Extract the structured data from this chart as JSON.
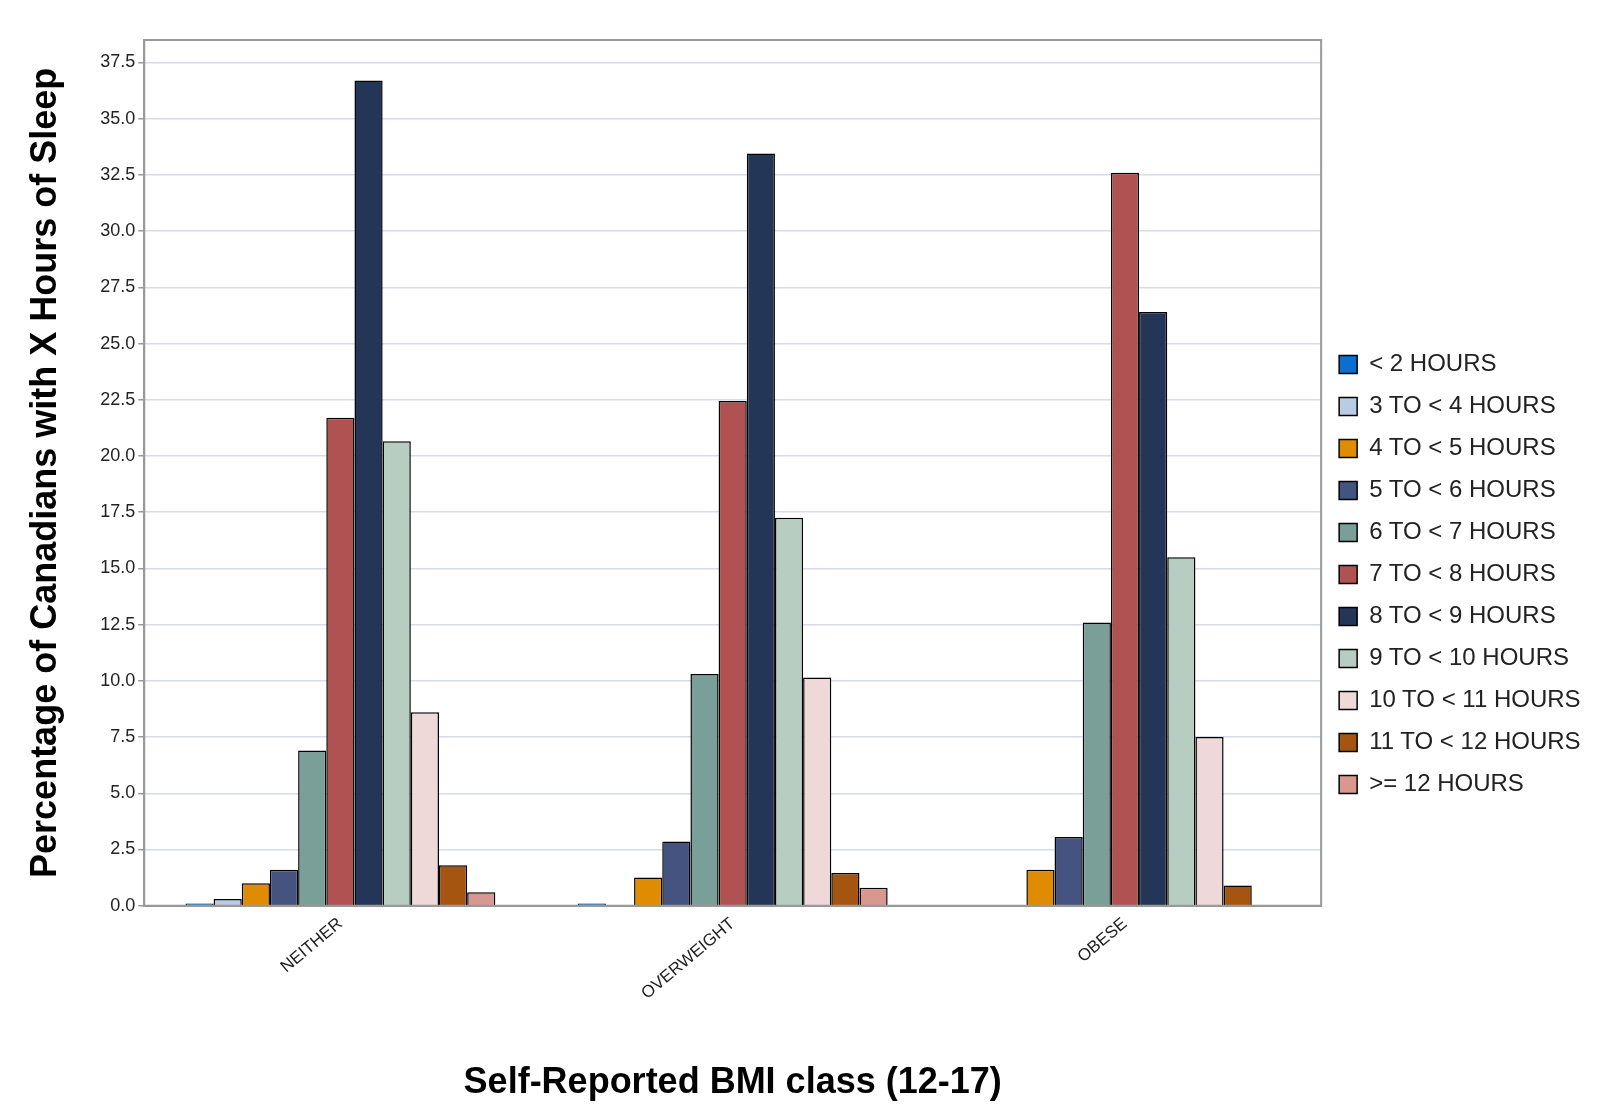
{
  "chart_data": {
    "type": "bar",
    "xlabel": "Self-Reported BMI class (12-17)",
    "ylabel": "Percentage of Canadians with X Hours of Sleep",
    "categories": [
      "NEITHER",
      "OVERWEIGHT",
      "OBESE"
    ],
    "series": [
      {
        "name": "< 2 HOURS",
        "color": "#0a6fd0",
        "values": [
          0.1,
          0.1,
          null
        ]
      },
      {
        "name": "3 TO < 4 HOURS",
        "color": "#b8cce4",
        "values": [
          0.3,
          null,
          null
        ]
      },
      {
        "name": "4 TO < 5 HOURS",
        "color": "#e08c00",
        "values": [
          1.0,
          1.25,
          1.6
        ]
      },
      {
        "name": "5 TO < 6 HOURS",
        "color": "#44537f",
        "values": [
          1.6,
          2.85,
          3.05
        ]
      },
      {
        "name": "6 TO < 7 HOURS",
        "color": "#7a9e98",
        "values": [
          6.9,
          10.3,
          12.6
        ]
      },
      {
        "name": "7 TO < 8 HOURS",
        "color": "#b05252",
        "values": [
          21.7,
          22.45,
          32.6
        ]
      },
      {
        "name": "8 TO < 9 HOURS",
        "color": "#243658",
        "values": [
          36.7,
          33.45,
          26.4
        ]
      },
      {
        "name": "9 TO < 10 HOURS",
        "color": "#b8cdc2",
        "values": [
          20.65,
          17.25,
          15.5
        ]
      },
      {
        "name": "10 TO < 11 HOURS",
        "color": "#eed8d8",
        "values": [
          8.6,
          10.15,
          7.5
        ]
      },
      {
        "name": "11 TO < 12 HOURS",
        "color": "#a65510",
        "values": [
          1.8,
          1.45,
          0.9
        ]
      },
      {
        "name": ">= 12 HOURS",
        "color": "#d89890",
        "values": [
          0.6,
          0.8,
          null
        ]
      }
    ],
    "ylim": [
      0,
      38.5
    ],
    "yticks": [
      {
        "value": 0,
        "label": "0.0"
      },
      {
        "value": 2.5,
        "label": "2.5"
      },
      {
        "value": 5,
        "label": "5.0"
      },
      {
        "value": 7.5,
        "label": "7.5"
      },
      {
        "value": 10,
        "label": "10.0"
      },
      {
        "value": 12.5,
        "label": "12.5"
      },
      {
        "value": 15,
        "label": "15.0"
      },
      {
        "value": 17.5,
        "label": "17.5"
      },
      {
        "value": 20,
        "label": "20.0"
      },
      {
        "value": 22.5,
        "label": "22.5"
      },
      {
        "value": 25,
        "label": "25.0"
      },
      {
        "value": 27.5,
        "label": "27.5"
      },
      {
        "value": 30,
        "label": "30.0"
      },
      {
        "value": 32.5,
        "label": "32.5"
      },
      {
        "value": 35,
        "label": "35.0"
      },
      {
        "value": 37.5,
        "label": "37.5"
      }
    ],
    "grid": "y",
    "legend": "right"
  }
}
